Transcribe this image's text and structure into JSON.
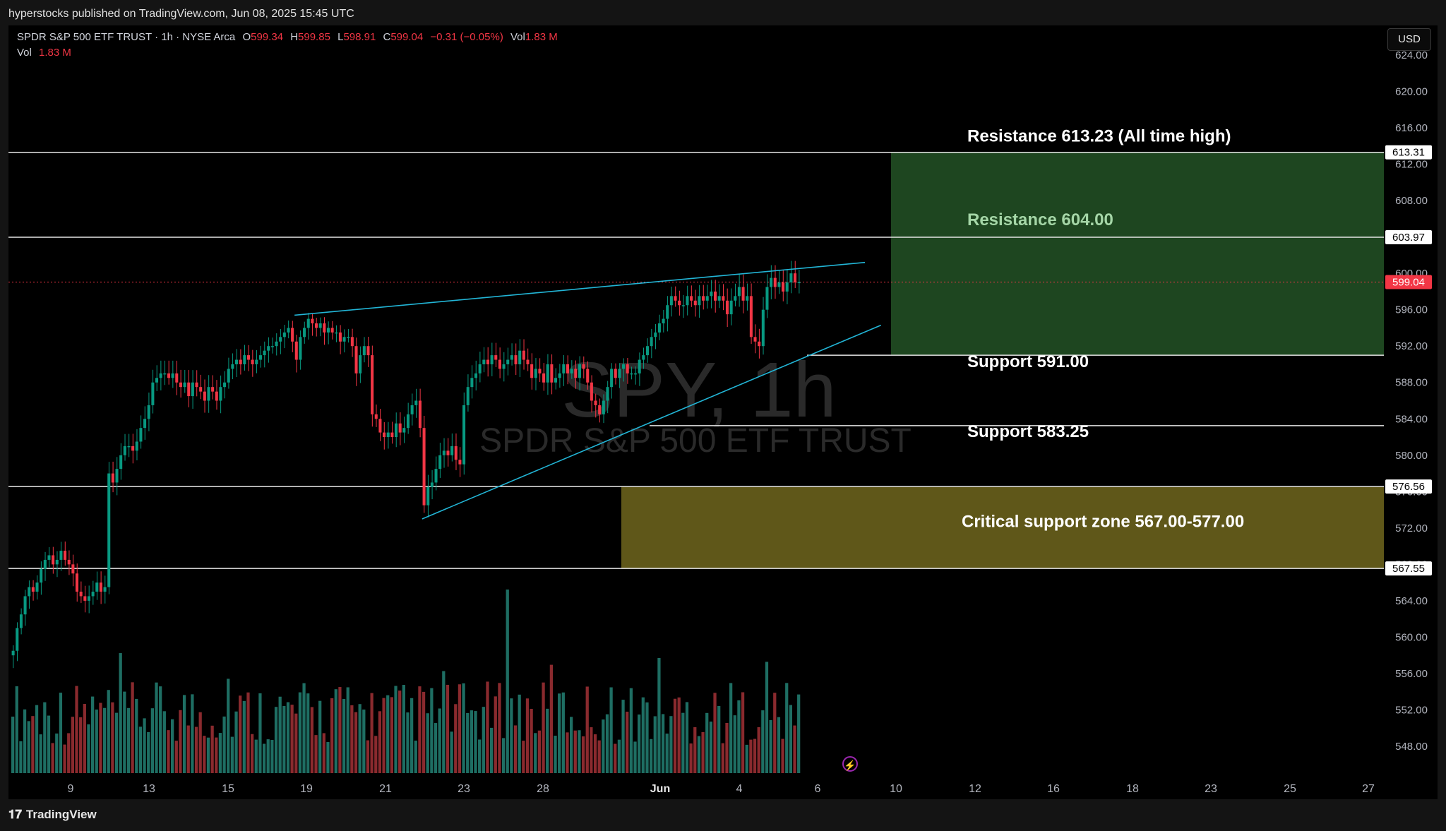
{
  "header": {
    "published": "hyperstocks published on TradingView.com, Jun 08, 2025 15:45 UTC"
  },
  "legend": {
    "symbol": "SPDR S&P 500 ETF TRUST · 1h · NYSE Arca",
    "o_label": "O",
    "o": "599.34",
    "h_label": "H",
    "h": "599.85",
    "l_label": "L",
    "l": "598.91",
    "c_label": "C",
    "c": "599.04",
    "change": "−0.31 (−0.05%)",
    "vol_label": "Vol",
    "vol": "1.83 M",
    "vol2_label": "Vol",
    "vol2": "1.83 M"
  },
  "currency_button": "USD",
  "watermark": {
    "ticker": "SPY, 1h",
    "name": "SPDR S&P 500 ETF TRUST"
  },
  "footer": {
    "brand": "TradingView"
  },
  "colors": {
    "up": "#089981",
    "down": "#f23645",
    "trend": "#22b5d6",
    "resistance_zone": "#1e4620",
    "critical_zone": "#5f5719",
    "price_badge": "#f23645"
  },
  "chart_data": {
    "type": "candlestick",
    "title": "SPY, 1h",
    "y_axis_ticks": [
      "624.00",
      "620.00",
      "616.00",
      "612.00",
      "608.00",
      "604.00",
      "600.00",
      "596.00",
      "592.00",
      "588.00",
      "584.00",
      "580.00",
      "576.00",
      "572.00",
      "568.00",
      "564.00",
      "560.00",
      "556.00",
      "552.00",
      "548.00"
    ],
    "x_axis_ticks": [
      "9",
      "13",
      "15",
      "19",
      "21",
      "23",
      "28",
      "Jun",
      "4",
      "6",
      "10",
      "12",
      "16",
      "18",
      "23",
      "25",
      "27"
    ],
    "ylim": [
      545.2,
      625.3
    ],
    "price_badges": [
      {
        "value": 613.31,
        "text": "613.31"
      },
      {
        "value": 603.97,
        "text": "603.97"
      },
      {
        "value": 599.04,
        "text": "599.04",
        "current": true
      },
      {
        "value": 576.56,
        "text": "576.56"
      },
      {
        "value": 567.55,
        "text": "567.55"
      }
    ],
    "horizontal_lines": [
      613.31,
      603.97,
      591.0,
      583.25,
      576.56,
      567.55
    ],
    "zones": [
      {
        "name": "resistance-zone",
        "from": 591.0,
        "to": 613.31
      },
      {
        "name": "critical-support-zone",
        "from": 567.55,
        "to": 576.56
      }
    ],
    "annotations": [
      {
        "text": "Resistance 613.23 (All time high)",
        "y": 614.5
      },
      {
        "text": "Resistance 604.00",
        "y": 605.3
      },
      {
        "text": "Support 591.00",
        "y": 589.7
      },
      {
        "text": "Support 583.25",
        "y": 582.0
      },
      {
        "text": "Critical support zone 567.00-577.00",
        "y": 572.1
      }
    ],
    "trendlines": [
      {
        "name": "upper-trendline",
        "from": {
          "bar": 71,
          "price": 595.4
        },
        "to": {
          "bar": 214,
          "price": 601.2
        }
      },
      {
        "name": "lower-trendline",
        "from": {
          "bar": 103,
          "price": 573.0
        },
        "to": {
          "bar": 218,
          "price": 594.3
        }
      }
    ],
    "candle_closes": [
      558.5,
      561.0,
      562.5,
      564.5,
      565.5,
      565.0,
      566.0,
      567.5,
      568.5,
      569.0,
      568.0,
      568.5,
      569.5,
      568.5,
      568.0,
      567.0,
      565.0,
      564.5,
      564.0,
      564.5,
      565.0,
      566.0,
      565.0,
      565.5,
      578.0,
      577.0,
      578.5,
      580.0,
      581.0,
      581.0,
      580.5,
      581.5,
      583.0,
      584.0,
      585.5,
      588.0,
      588.5,
      589.0,
      589.0,
      588.5,
      589.0,
      588.0,
      587.5,
      588.0,
      586.5,
      588.0,
      587.5,
      587.0,
      586.0,
      587.5,
      587.0,
      586.0,
      587.5,
      588.0,
      589.5,
      590.0,
      590.5,
      590.0,
      591.0,
      590.5,
      590.0,
      590.5,
      591.0,
      591.5,
      592.0,
      592.0,
      592.5,
      593.0,
      593.5,
      594.0,
      592.5,
      590.5,
      593.0,
      594.0,
      595.0,
      594.5,
      594.0,
      594.5,
      593.5,
      594.0,
      593.5,
      593.5,
      592.5,
      593.0,
      593.0,
      592.0,
      589.0,
      591.0,
      592.0,
      591.0,
      584.5,
      584.0,
      582.5,
      582.0,
      582.5,
      582.0,
      583.5,
      582.5,
      583.0,
      584.5,
      585.5,
      586.0,
      583.0,
      574.5,
      576.5,
      577.0,
      578.5,
      580.0,
      580.5,
      580.0,
      581.0,
      579.5,
      579.0,
      585.5,
      587.5,
      588.5,
      589.0,
      590.0,
      590.5,
      590.0,
      591.0,
      590.5,
      589.5,
      590.0,
      590.5,
      591.0,
      590.0,
      591.5,
      590.5,
      590.0,
      588.5,
      589.5,
      589.0,
      588.0,
      590.0,
      588.0,
      588.5,
      589.0,
      590.0,
      589.0,
      589.5,
      588.5,
      590.0,
      589.5,
      588.0,
      586.0,
      585.5,
      584.5,
      586.0,
      587.5,
      589.5,
      588.5,
      589.5,
      590.0,
      589.0,
      589.0,
      589.0,
      590.5,
      591.0,
      592.0,
      593.0,
      593.5,
      594.5,
      595.0,
      596.5,
      597.5,
      597.0,
      596.5,
      596.5,
      597.5,
      597.0,
      596.5,
      597.5,
      597.0,
      597.5,
      598.0,
      597.0,
      597.5,
      597.0,
      595.5,
      597.0,
      597.5,
      598.5,
      597.0,
      597.5,
      593.0,
      592.5,
      592.0,
      596.0,
      598.5,
      599.5,
      598.5,
      599.0,
      598.0,
      599.0,
      600.0,
      599.0,
      599.04
    ],
    "volume_note": "volume histogram below price, bars coloured by candle direction"
  }
}
